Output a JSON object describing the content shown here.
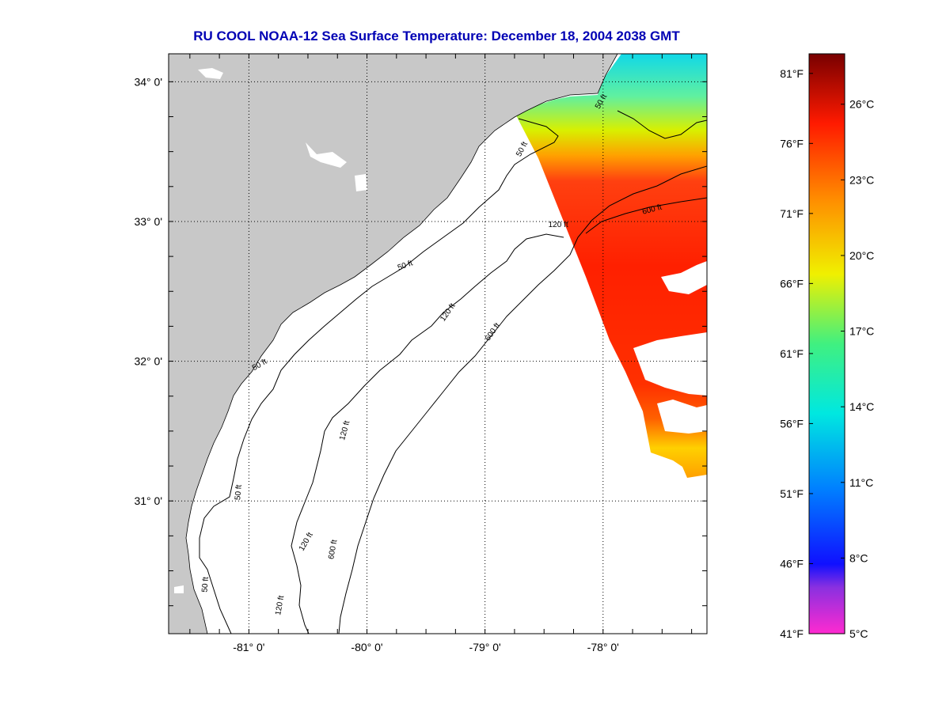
{
  "title": "RU COOL  NOAA-12  Sea Surface Temperature:  December 18, 2004 2038 GMT",
  "map": {
    "lat_labels": [
      {
        "lat": 34,
        "label": "34° 0'"
      },
      {
        "lat": 33,
        "label": "33° 0'"
      },
      {
        "lat": 32,
        "label": "32° 0'"
      },
      {
        "lat": 31,
        "label": "31° 0'"
      }
    ],
    "lon_labels": [
      {
        "lon": -81,
        "label": "-81° 0'"
      },
      {
        "lon": -80,
        "label": "-80° 0'"
      },
      {
        "lon": -79,
        "label": "-79° 0'"
      },
      {
        "lon": -78,
        "label": "-78° 0'"
      }
    ],
    "lat_range": [
      30.05,
      34.2
    ],
    "lon_range": [
      -81.68,
      -77.12
    ],
    "contour_labels": [
      {
        "text": "50 ft",
        "lon": -78.67,
        "lat": 33.51,
        "rot": -62
      },
      {
        "text": "120 ft",
        "lon": -78.38,
        "lat": 32.96,
        "rot": 0
      },
      {
        "text": "600 ft",
        "lon": -77.58,
        "lat": 33.07,
        "rot": -15
      },
      {
        "text": "50 ft",
        "lon": -79.67,
        "lat": 32.67,
        "rot": -20
      },
      {
        "text": "120 ft",
        "lon": -79.3,
        "lat": 32.34,
        "rot": -55
      },
      {
        "text": "600 ft",
        "lon": -78.92,
        "lat": 32.2,
        "rot": -55
      },
      {
        "text": "50 ft",
        "lon": -80.9,
        "lat": 31.96,
        "rot": -30
      },
      {
        "text": "120 ft",
        "lon": -80.17,
        "lat": 31.5,
        "rot": -75
      },
      {
        "text": "50 ft",
        "lon": -81.07,
        "lat": 31.06,
        "rot": -85
      },
      {
        "text": "120 ft",
        "lon": -80.5,
        "lat": 30.7,
        "rot": -60
      },
      {
        "text": "600 ft",
        "lon": -80.27,
        "lat": 30.65,
        "rot": -80
      },
      {
        "text": "50 ft",
        "lon": -81.35,
        "lat": 30.4,
        "rot": -85
      },
      {
        "text": "120 ft",
        "lon": -80.72,
        "lat": 30.25,
        "rot": -80
      },
      {
        "text": "50 ft",
        "lon": -78.0,
        "lat": 33.85,
        "rot": -60
      }
    ]
  },
  "colorbar": {
    "min_c": 5,
    "max_c": 28,
    "fahrenheit_labels": [
      "81°F",
      "76°F",
      "71°F",
      "66°F",
      "61°F",
      "56°F",
      "51°F",
      "46°F",
      "41°F"
    ],
    "celsius_labels": [
      "26°C",
      "23°C",
      "20°C",
      "17°C",
      "14°C",
      "11°C",
      "8°C",
      "5°C"
    ]
  },
  "colors": {
    "land": "#c8c8c8",
    "title": "#0000b4",
    "ocean": "#ffffff"
  }
}
